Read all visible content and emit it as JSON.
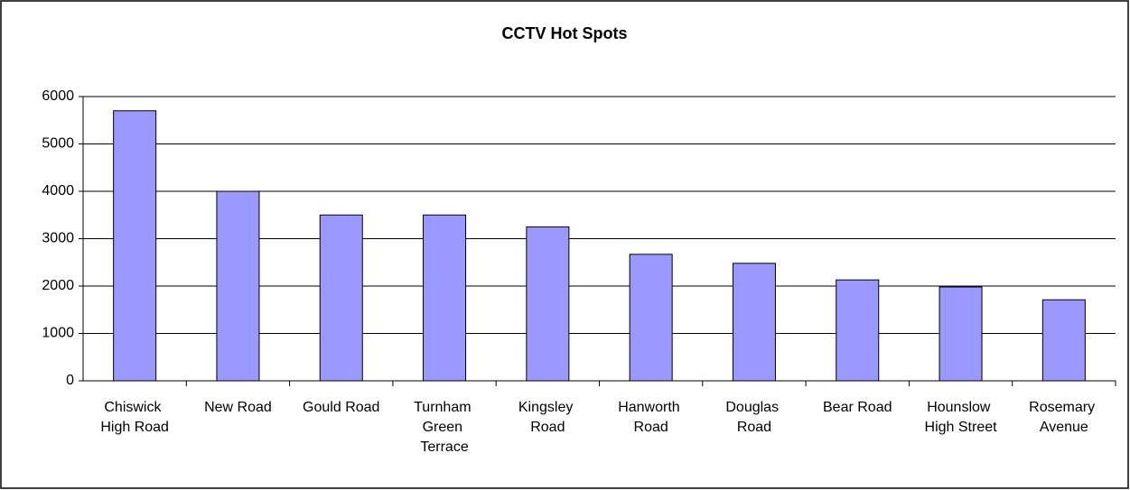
{
  "chart_data": {
    "type": "bar",
    "title": "CCTV Hot Spots",
    "categories": [
      "Chiswick High Road",
      "New Road",
      "Gould Road",
      "Turnham Green Terrace",
      "Kingsley Road",
      "Hanworth Road",
      "Douglas Road",
      "Bear Road",
      "Hounslow High Street",
      "Rosemary Avenue"
    ],
    "values": [
      5700,
      4000,
      3500,
      3500,
      3250,
      2670,
      2480,
      2130,
      1980,
      1710
    ],
    "color": "#9999ff",
    "ylim": [
      0,
      6000
    ],
    "yticks": [
      0,
      1000,
      2000,
      3000,
      4000,
      5000,
      6000
    ],
    "grid": true
  }
}
